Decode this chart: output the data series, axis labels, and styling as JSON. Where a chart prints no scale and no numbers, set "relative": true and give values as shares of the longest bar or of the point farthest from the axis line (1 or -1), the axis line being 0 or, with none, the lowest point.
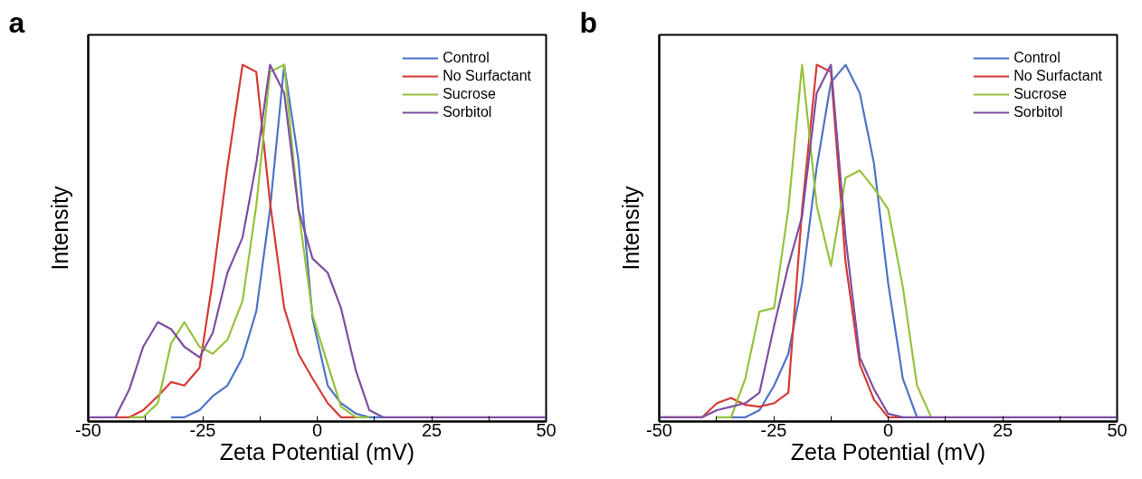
{
  "chart_data": [
    {
      "type": "line",
      "title": "a",
      "xlabel": "Zeta Potential (mV)",
      "ylabel": "Intensity",
      "relative": true,
      "legend": "top right",
      "grid": false,
      "xlim": [
        -50,
        50
      ],
      "xticks": [
        -50,
        {
          "value": -37.5,
          "label": null
        },
        -25,
        {
          "value": -12.5,
          "label": null
        },
        0,
        {
          "value": 12.5,
          "label": null
        },
        25,
        {
          "value": 37.5,
          "label": null
        },
        50
      ],
      "x": [
        -50,
        -44.1,
        -41.0,
        -38.0,
        -34.8,
        -31.9,
        -29.0,
        -25.7,
        -22.8,
        -19.6,
        -16.3,
        -13.3,
        -10.3,
        -7.2,
        -4.1,
        -1.0,
        2.3,
        5.2,
        8.5,
        11.4,
        14.4,
        50
      ],
      "series": [
        {
          "name": "Control",
          "color": "#4f74c6",
          "values": [
            null,
            null,
            null,
            null,
            null,
            0,
            0,
            0.02,
            0.06,
            0.09,
            0.17,
            0.3,
            0.59,
            1.0,
            0.73,
            0.28,
            0.09,
            0.04,
            0.01,
            0,
            0,
            null
          ]
        },
        {
          "name": "No Surfactant",
          "color": "#d63b36",
          "values": [
            null,
            0,
            0,
            0.02,
            0.06,
            0.1,
            0.09,
            0.14,
            0.39,
            0.71,
            1.0,
            0.98,
            0.61,
            0.31,
            0.18,
            0.11,
            0.04,
            0,
            0,
            null,
            null,
            null
          ]
        },
        {
          "name": "Sucrose",
          "color": "#96c23c",
          "values": [
            null,
            null,
            0,
            0,
            0.04,
            0.21,
            0.27,
            0.2,
            0.18,
            0.22,
            0.33,
            0.6,
            0.98,
            1.0,
            0.59,
            0.29,
            0.15,
            0.03,
            0,
            0,
            null,
            null
          ]
        },
        {
          "name": "Sorbitol",
          "color": "#7d4fa1",
          "values": [
            0,
            0,
            0.08,
            0.2,
            0.27,
            0.25,
            0.2,
            0.17,
            0.24,
            0.41,
            0.51,
            0.72,
            1.0,
            0.92,
            0.59,
            0.45,
            0.41,
            0.31,
            0.13,
            0.02,
            0,
            0
          ]
        }
      ]
    },
    {
      "type": "line",
      "title": "b",
      "xlabel": "Zeta Potential (mV)",
      "ylabel": "Intensity",
      "relative": true,
      "legend": "top right",
      "grid": false,
      "xlim": [
        -50,
        50
      ],
      "xticks": [
        -50,
        {
          "value": -37.5,
          "label": null
        },
        -25,
        {
          "value": -12.5,
          "label": null
        },
        0,
        {
          "value": 12.5,
          "label": null
        },
        25,
        {
          "value": 37.5,
          "label": null
        },
        50
      ],
      "x": [
        -50,
        -40.6,
        -37.4,
        -34.3,
        -31.2,
        -28.1,
        -24.9,
        -21.8,
        -18.8,
        -15.6,
        -12.5,
        -9.3,
        -6.2,
        -3.1,
        0.0,
        3.2,
        6.3,
        9.4,
        50
      ],
      "series": [
        {
          "name": "Control",
          "color": "#4f74c6",
          "values": [
            null,
            null,
            null,
            0,
            0,
            0.02,
            0.09,
            0.18,
            0.38,
            0.71,
            0.95,
            1.0,
            0.92,
            0.72,
            0.38,
            0.11,
            0,
            0,
            null
          ]
        },
        {
          "name": "No Surfactant",
          "color": "#d63b36",
          "values": [
            0,
            0,
            0.04,
            0.055,
            0.035,
            0.03,
            0.04,
            0.07,
            0.59,
            1.0,
            0.98,
            0.44,
            0.15,
            0.05,
            0,
            0,
            null,
            null,
            null
          ]
        },
        {
          "name": "Sucrose",
          "color": "#96c23c",
          "values": [
            null,
            null,
            0,
            0,
            0.11,
            0.3,
            0.31,
            0.59,
            1.0,
            0.6,
            0.43,
            0.68,
            0.7,
            0.65,
            0.59,
            0.37,
            0.09,
            0,
            null
          ]
        },
        {
          "name": "Sorbitol",
          "color": "#7d4fa1",
          "values": [
            0,
            0,
            0.02,
            0.03,
            0.04,
            0.07,
            0.26,
            0.43,
            0.57,
            0.92,
            1.0,
            0.51,
            0.17,
            0.08,
            0.01,
            0,
            0,
            0,
            0
          ]
        }
      ]
    }
  ]
}
